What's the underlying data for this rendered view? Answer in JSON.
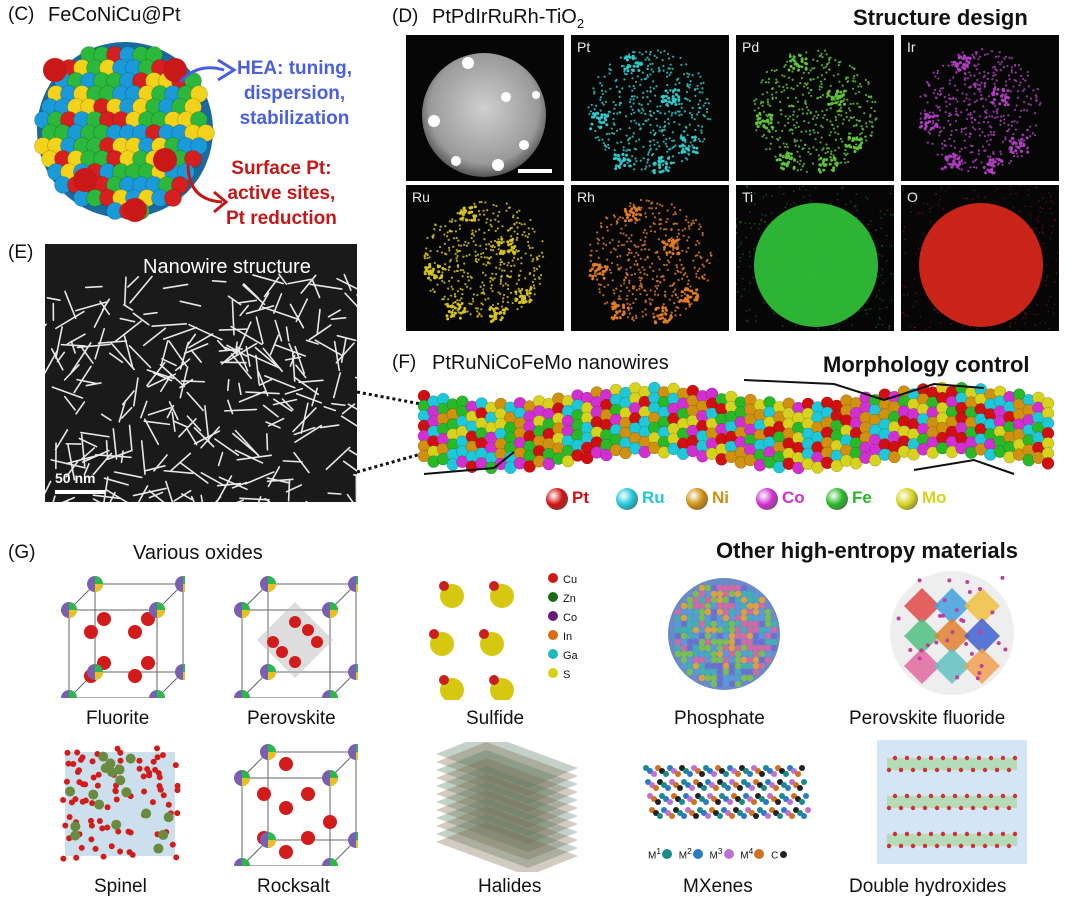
{
  "panel_c": {
    "label": "(C)",
    "title": "FeCoNiCu@Pt",
    "hea_text": [
      "HEA: tuning,",
      "dispersion,",
      "stabilization"
    ],
    "surface_text": [
      "Surface Pt:",
      "active sites,",
      "Pt reduction"
    ],
    "colors": {
      "hea": "#4a5fe0",
      "surface": "#c41818"
    }
  },
  "panel_d": {
    "label": "(D)",
    "title_main": "PtPdIrRuRh-TiO",
    "title_sub": "2",
    "heading": "Structure design",
    "maps": [
      {
        "element": "",
        "color": "#bdbdbd"
      },
      {
        "element": "Pt",
        "color": "#2fc9c9"
      },
      {
        "element": "Pd",
        "color": "#5fc23a"
      },
      {
        "element": "Ir",
        "color": "#b03cc0"
      },
      {
        "element": "Ru",
        "color": "#d6c21e"
      },
      {
        "element": "Rh",
        "color": "#e07a25"
      },
      {
        "element": "Ti",
        "color": "#32c83a"
      },
      {
        "element": "O",
        "color": "#e0281c"
      }
    ]
  },
  "panel_e": {
    "label": "(E)",
    "title": "Nanowire structure",
    "scale": "50 nm"
  },
  "panel_f": {
    "label": "(F)",
    "title": "PtRuNiCoFeMo nanowires",
    "heading": "Morphology control",
    "legend": [
      {
        "name": "Pt",
        "color": "#d01010"
      },
      {
        "name": "Ru",
        "color": "#1ec8d8"
      },
      {
        "name": "Ni",
        "color": "#d09010"
      },
      {
        "name": "Co",
        "color": "#d030d0"
      },
      {
        "name": "Fe",
        "color": "#28b828"
      },
      {
        "name": "Mo",
        "color": "#d6d21e"
      }
    ]
  },
  "panel_g": {
    "label": "(G)",
    "oxides_title": "Various oxides",
    "other_title": "Other high-entropy materials",
    "captions": {
      "fluorite": "Fluorite",
      "perovskite": "Perovskite",
      "spinel": "Spinel",
      "rocksalt": "Rocksalt",
      "sulfide": "Sulfide",
      "phosphate": "Phosphate",
      "perovskite_fluoride": "Perovskite fluoride",
      "halides": "Halides",
      "mxenes": "MXenes",
      "double_hydroxides": "Double hydroxides"
    },
    "sulfide_legend": [
      {
        "name": "Cu",
        "color": "#d01818"
      },
      {
        "name": "Zn",
        "color": "#1a6a1a"
      },
      {
        "name": "Co",
        "color": "#6a1a7a"
      },
      {
        "name": "In",
        "color": "#e06a10"
      },
      {
        "name": "Ga",
        "color": "#20b8c0"
      },
      {
        "name": "S",
        "color": "#d6d010"
      }
    ],
    "mxene_legend": [
      "M",
      "1",
      "M",
      "2",
      "M",
      "3",
      "M",
      "4",
      "C"
    ]
  }
}
